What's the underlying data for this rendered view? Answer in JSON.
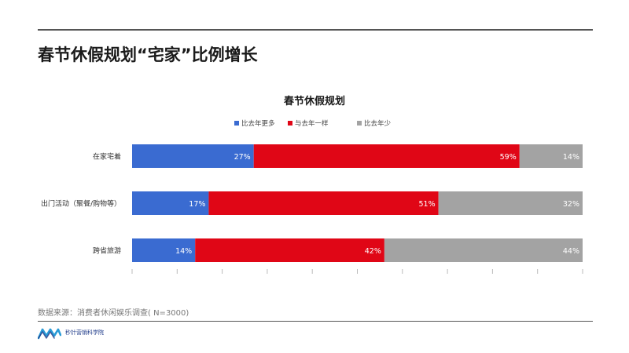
{
  "page": {
    "title": "春节休假规划“宅家”比例增长",
    "source": "数据来源：消费者休闲娱乐调查( N=3000)",
    "logo_text": "秒针营销科学院"
  },
  "colors": {
    "series": [
      "#3a6bd1",
      "#e00616",
      "#a3a3a3"
    ],
    "rule": "#555555"
  },
  "icons": {
    "logo": "mw-logo-icon"
  },
  "chart_data": {
    "type": "bar",
    "orientation": "horizontal",
    "stacked": true,
    "percent": true,
    "title": "春节休假规划",
    "categories": [
      "在家宅着",
      "出门活动（聚餐/购物等）",
      "跨省旅游"
    ],
    "series": [
      {
        "name": "比去年更多",
        "values": [
          27,
          17,
          14
        ],
        "labels": [
          "27%",
          "17%",
          "14%"
        ]
      },
      {
        "name": "与去年一样",
        "values": [
          59,
          51,
          42
        ],
        "labels": [
          "59%",
          "51%",
          "42%"
        ]
      },
      {
        "name": "比去年少",
        "values": [
          14,
          32,
          44
        ],
        "labels": [
          "14%",
          "32%",
          "44%"
        ]
      }
    ],
    "xlim": [
      0,
      100
    ],
    "grid": false,
    "legend": "top-center"
  }
}
